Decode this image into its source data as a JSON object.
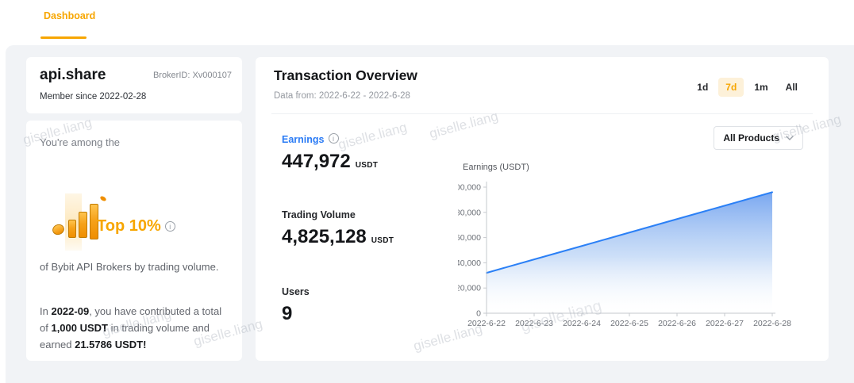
{
  "colors": {
    "accent_orange": "#f7a600",
    "active_range_pill_bg": "#fdf1d9",
    "earnings_blue": "#2a7bf5",
    "chart_line_blue": "#2b80f6",
    "page_bg": "#f1f3f6",
    "card_bg": "#ffffff"
  },
  "nav": {
    "dashboard_tab": "Dashboard"
  },
  "profile_card": {
    "name": "api.share",
    "broker_id": "BrokerID: Xv000107",
    "member_since": "Member since 2022-02-28"
  },
  "rank_card": {
    "intro": "You're among the",
    "rank_label": "Top 10%",
    "caption": "of Bybit API Brokers by trading volume.",
    "summary_parts": {
      "t1": "In ",
      "b1": "2022-09",
      "t2": ", you have contributed a total of ",
      "b2": "1,000 USDT",
      "t3": " in trading volume and earned ",
      "b3": "21.5786 USDT!"
    }
  },
  "overview": {
    "title": "Transaction Overview",
    "subtitle": "Data from: 2022-6-22 - 2022-6-28",
    "ranges": [
      {
        "label": "1d",
        "active": false
      },
      {
        "label": "7d",
        "active": true
      },
      {
        "label": "1m",
        "active": false
      },
      {
        "label": "All",
        "active": false
      }
    ],
    "product_filter": {
      "selected": "All Products"
    },
    "stats": [
      {
        "label": "Earnings",
        "value": "447,972",
        "unit": "USDT",
        "has_info": true,
        "selected": true
      },
      {
        "label": "Trading Volume",
        "value": "4,825,128",
        "unit": "USDT"
      },
      {
        "label": "Users",
        "value": "9",
        "unit": ""
      }
    ]
  },
  "chart_data": {
    "type": "area",
    "title": "Earnings (USDT)",
    "x": [
      "2022-6-22",
      "2022-6-23",
      "2022-6-24",
      "2022-6-25",
      "2022-6-26",
      "2022-6-27",
      "2022-6-28"
    ],
    "values": [
      32000,
      42700,
      53300,
      64000,
      74700,
      85300,
      96000
    ],
    "ylabel": "Earnings (USDT)",
    "xlabel": "",
    "ylim": [
      0,
      100000
    ],
    "ytick_step": 20000,
    "grid": false,
    "legend": "none",
    "line_color": "#2b80f6",
    "fill": "vertical gradient blue to white under line"
  },
  "icons": {
    "info": "i"
  },
  "watermark": {
    "text": "giselle.liang"
  }
}
